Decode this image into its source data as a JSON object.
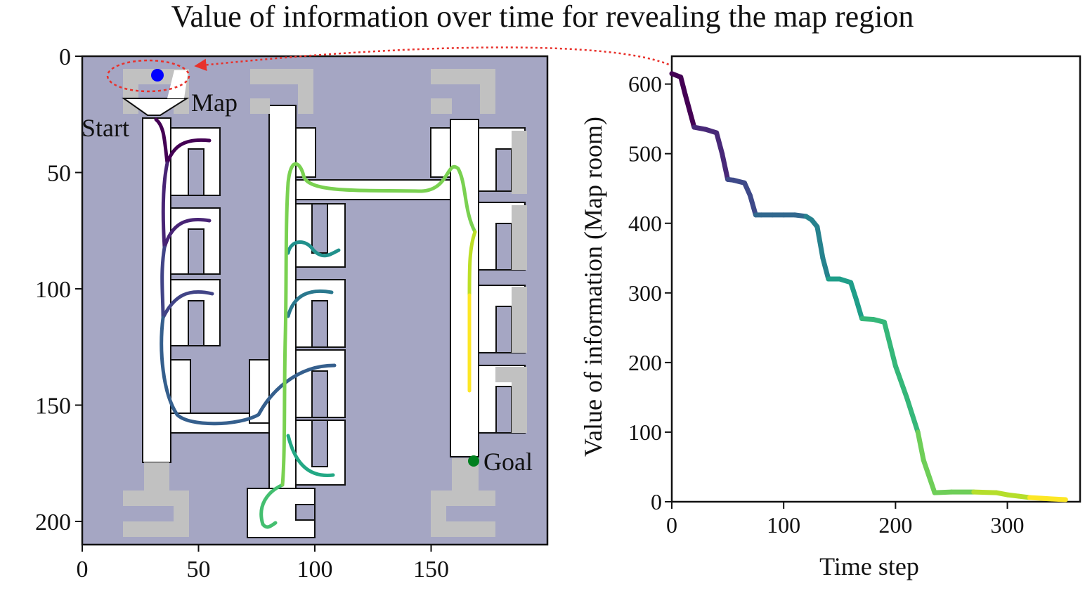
{
  "title": "Value of information over time for revealing the map region",
  "chart_data": [
    {
      "type": "map",
      "xlim": [
        0,
        200
      ],
      "ylim": [
        210,
        0
      ],
      "xticks": [
        0,
        50,
        100,
        150
      ],
      "yticks": [
        0,
        50,
        100,
        150,
        200
      ],
      "background_color": "#a5a6c3",
      "annotations": [
        {
          "text": "Map",
          "x": 47,
          "y": 19
        },
        {
          "text": "Start",
          "x": 0,
          "y": 30
        },
        {
          "text": "Goal",
          "x": 171,
          "y": 174
        }
      ],
      "markers": [
        {
          "name": "start",
          "x": 32,
          "y": 7,
          "color": "#0000ff"
        },
        {
          "name": "goal",
          "x": 168,
          "y": 172,
          "color": "#00801f"
        }
      ],
      "map_region_highlight": {
        "x": 32,
        "y": 7,
        "color": "#e8312b"
      },
      "colormap": "viridis"
    },
    {
      "type": "line",
      "xlabel": "Time step",
      "ylabel": "Value of information (Map room)",
      "xlim": [
        0,
        365
      ],
      "ylim": [
        0,
        640
      ],
      "xticks": [
        0,
        100,
        200,
        300
      ],
      "yticks": [
        0,
        100,
        200,
        300,
        400,
        500,
        600
      ],
      "colormap": "viridis",
      "x": [
        0,
        8,
        12,
        20,
        30,
        40,
        45,
        50,
        55,
        65,
        70,
        75,
        80,
        90,
        100,
        110,
        120,
        125,
        130,
        135,
        140,
        150,
        160,
        165,
        170,
        180,
        190,
        200,
        210,
        220,
        225,
        235,
        250,
        270,
        290,
        300,
        310,
        320,
        330,
        340,
        352
      ],
      "y": [
        615,
        610,
        585,
        538,
        535,
        530,
        500,
        463,
        462,
        458,
        440,
        412,
        412,
        412,
        412,
        412,
        410,
        405,
        395,
        350,
        320,
        320,
        315,
        290,
        263,
        262,
        258,
        195,
        150,
        100,
        60,
        13,
        14,
        14,
        13,
        10,
        8,
        6,
        5,
        4,
        3
      ]
    }
  ]
}
